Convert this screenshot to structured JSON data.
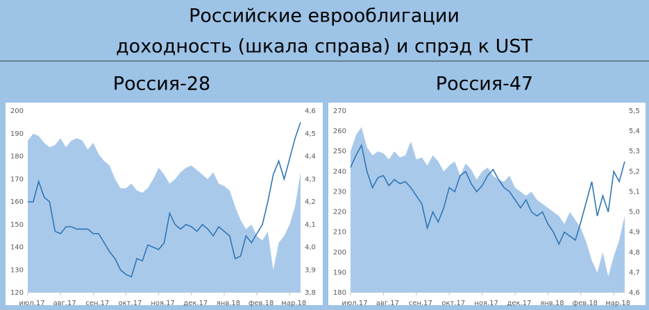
{
  "header": {
    "title_lines": [
      "Российские еврооблигации",
      "доходность (шкала справа) и спрэд к UST"
    ]
  },
  "chart_data": [
    {
      "type": "area-line",
      "title": "Россия-28",
      "categories": [
        "июл.17",
        null,
        null,
        null,
        null,
        null,
        "авг.17",
        null,
        null,
        null,
        null,
        null,
        "сен.17",
        null,
        null,
        null,
        null,
        null,
        "окт.17",
        null,
        null,
        null,
        null,
        null,
        "ноя.17",
        null,
        null,
        null,
        null,
        null,
        "дек.17",
        null,
        null,
        null,
        null,
        null,
        "янв.18",
        null,
        null,
        null,
        null,
        null,
        "фев.18",
        null,
        null,
        null,
        null,
        null,
        "мар.18",
        null,
        null
      ],
      "series": [
        {
          "type": "area",
          "color": "#a9c9ea",
          "values": [
            187,
            190,
            189,
            186,
            184,
            185,
            188,
            184,
            187,
            188,
            187,
            183,
            186,
            181,
            178,
            176,
            170,
            166,
            166,
            168,
            165,
            164,
            166,
            170,
            175,
            172,
            168,
            170,
            173,
            175,
            176,
            174,
            172,
            170,
            173,
            168,
            167,
            165,
            158,
            152,
            148,
            150,
            145,
            143,
            147,
            130,
            142,
            145,
            150,
            158,
            173
          ]
        },
        {
          "type": "line",
          "color": "#2e75b6",
          "axis": "y2",
          "values": [
            4.2,
            4.2,
            4.29,
            4.22,
            4.2,
            4.07,
            4.06,
            4.09,
            4.09,
            4.08,
            4.08,
            4.08,
            4.06,
            4.06,
            4.02,
            3.98,
            3.95,
            3.9,
            3.88,
            3.87,
            3.95,
            3.94,
            4.01,
            4.0,
            3.99,
            4.02,
            4.15,
            4.1,
            4.08,
            4.1,
            4.09,
            4.07,
            4.1,
            4.08,
            4.05,
            4.09,
            4.07,
            4.05,
            3.95,
            3.96,
            4.05,
            4.02,
            4.06,
            4.1,
            4.2,
            4.32,
            4.38,
            4.3,
            4.39,
            4.48,
            4.55
          ]
        }
      ],
      "ylim": [
        120,
        200
      ],
      "yticks": [
        120,
        130,
        140,
        150,
        160,
        170,
        180,
        190,
        200
      ],
      "y2lim": [
        3.8,
        4.6
      ],
      "y2ticks": [
        {
          "value": 3.8,
          "label": "3,8"
        },
        {
          "value": 3.9,
          "label": "3,9"
        },
        {
          "value": 4.0,
          "label": "4,0"
        },
        {
          "value": 4.1,
          "label": "4,1"
        },
        {
          "value": 4.2,
          "label": "4,2"
        },
        {
          "value": 4.3,
          "label": "4,3"
        },
        {
          "value": 4.4,
          "label": "4,4"
        },
        {
          "value": 4.5,
          "label": "4,5"
        },
        {
          "value": 4.6,
          "label": "4,6"
        }
      ]
    },
    {
      "type": "area-line",
      "title": "Россия-47",
      "categories": [
        "июл.17",
        null,
        null,
        null,
        null,
        null,
        "авг.17",
        null,
        null,
        null,
        null,
        null,
        "сен.17",
        null,
        null,
        null,
        null,
        null,
        "окт.17",
        null,
        null,
        null,
        null,
        null,
        "ноя.17",
        null,
        null,
        null,
        null,
        null,
        "дек.17",
        null,
        null,
        null,
        null,
        null,
        "янв.18",
        null,
        null,
        null,
        null,
        null,
        "фев.18",
        null,
        null,
        null,
        null,
        null,
        "мар.18",
        null,
        null
      ],
      "series": [
        {
          "type": "area",
          "color": "#a9c9ea",
          "values": [
            250,
            258,
            262,
            252,
            248,
            250,
            249,
            246,
            250,
            247,
            248,
            255,
            246,
            247,
            243,
            248,
            245,
            240,
            243,
            245,
            238,
            244,
            241,
            236,
            240,
            242,
            238,
            236,
            235,
            238,
            232,
            230,
            228,
            230,
            226,
            224,
            222,
            220,
            218,
            214,
            220,
            216,
            212,
            205,
            196,
            190,
            200,
            188,
            198,
            206,
            218
          ]
        },
        {
          "type": "line",
          "color": "#2e75b6",
          "axis": "y2",
          "values": [
            5.22,
            5.28,
            5.33,
            5.2,
            5.12,
            5.17,
            5.18,
            5.13,
            5.16,
            5.14,
            5.15,
            5.12,
            5.08,
            5.04,
            4.92,
            5.0,
            4.95,
            5.02,
            5.12,
            5.1,
            5.18,
            5.2,
            5.14,
            5.1,
            5.13,
            5.18,
            5.21,
            5.16,
            5.12,
            5.1,
            5.06,
            5.02,
            5.06,
            5.0,
            4.98,
            5.0,
            4.94,
            4.9,
            4.84,
            4.9,
            4.88,
            4.86,
            4.95,
            5.05,
            5.15,
            4.98,
            5.08,
            5.0,
            5.2,
            5.15,
            5.25
          ]
        }
      ],
      "ylim": [
        180,
        270
      ],
      "yticks": [
        180,
        190,
        200,
        210,
        220,
        230,
        240,
        250,
        260,
        270
      ],
      "y2lim": [
        4.6,
        5.5
      ],
      "y2ticks": [
        {
          "value": 4.6,
          "label": "4,6"
        },
        {
          "value": 4.7,
          "label": "4,7"
        },
        {
          "value": 4.8,
          "label": "4,8"
        },
        {
          "value": 4.9,
          "label": "4,9"
        },
        {
          "value": 5.0,
          "label": "5,0"
        },
        {
          "value": 5.1,
          "label": "5,1"
        },
        {
          "value": 5.2,
          "label": "5,2"
        },
        {
          "value": 5.3,
          "label": "5,3"
        },
        {
          "value": 5.4,
          "label": "5,4"
        },
        {
          "value": 5.5,
          "label": "5,5"
        }
      ]
    }
  ]
}
